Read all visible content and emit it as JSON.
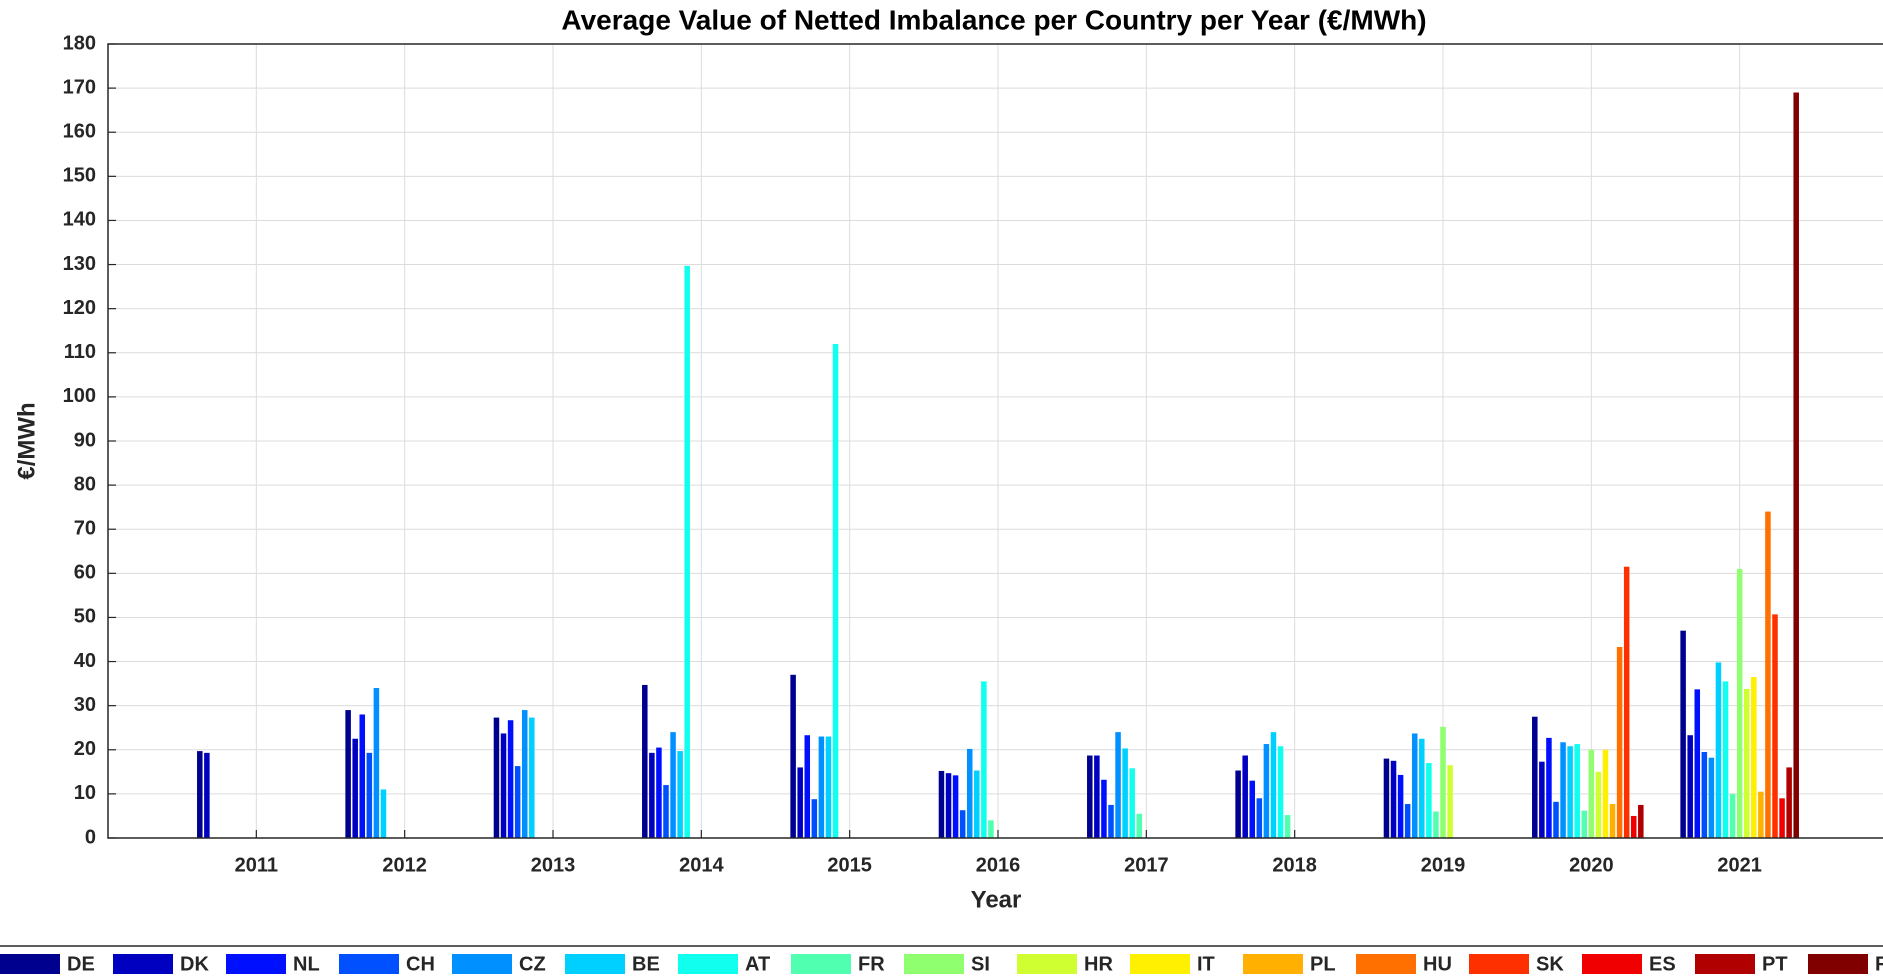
{
  "chart_data": {
    "type": "bar",
    "title": "Average Value of Netted Imbalance per Country per Year (€/MWh)",
    "x_label": "Year",
    "y_label": "€/MWh",
    "x": [
      2011,
      2012,
      2013,
      2014,
      2015,
      2016,
      2017,
      2018,
      2019,
      2020,
      2021
    ],
    "xlim": [
      2010,
      2022
    ],
    "xticks": [
      2011,
      2012,
      2013,
      2014,
      2015,
      2016,
      2017,
      2018,
      2019,
      2020,
      2021
    ],
    "ylim": [
      0,
      180
    ],
    "yticks": [
      0,
      10,
      20,
      30,
      40,
      50,
      60,
      70,
      80,
      90,
      100,
      110,
      120,
      130,
      140,
      150,
      160,
      170,
      180
    ],
    "grid": true,
    "legend": "bottom",
    "series": [
      {
        "name": "DE",
        "color": "#00008f",
        "values": [
          19.7,
          29,
          27.3,
          34.7,
          37,
          15.2,
          18.7,
          15.3,
          18,
          27.5,
          47
        ]
      },
      {
        "name": "DK",
        "color": "#0000c0",
        "values": [
          19.3,
          22.5,
          23.7,
          19.3,
          16,
          14.7,
          18.7,
          18.7,
          17.5,
          17.3,
          23.3
        ]
      },
      {
        "name": "NL",
        "color": "#0010ff",
        "values": [
          null,
          28,
          26.7,
          20.5,
          23.3,
          14.2,
          13.2,
          13,
          14.3,
          22.7,
          33.7
        ]
      },
      {
        "name": "CH",
        "color": "#0050ff",
        "values": [
          null,
          19.3,
          16.3,
          12,
          8.8,
          6.3,
          7.5,
          9,
          7.7,
          8.2,
          19.5
        ]
      },
      {
        "name": "CZ",
        "color": "#0090ff",
        "values": [
          null,
          34,
          29,
          24,
          23,
          20.2,
          24,
          21.3,
          23.7,
          21.7,
          18.2
        ]
      },
      {
        "name": "BE",
        "color": "#00d0ff",
        "values": [
          null,
          11,
          27.3,
          19.7,
          23,
          15.3,
          20.3,
          24,
          22.5,
          20.8,
          39.8
        ]
      },
      {
        "name": "AT",
        "color": "#10ffef",
        "values": [
          null,
          null,
          null,
          129.7,
          112,
          35.5,
          15.8,
          20.8,
          17,
          21.3,
          35.5
        ]
      },
      {
        "name": "FR",
        "color": "#50ffaf",
        "values": [
          null,
          null,
          null,
          null,
          null,
          4,
          5.5,
          5.2,
          6,
          6.2,
          10
        ]
      },
      {
        "name": "SI",
        "color": "#90ff6f",
        "values": [
          null,
          null,
          null,
          null,
          null,
          null,
          null,
          null,
          25.2,
          20,
          61
        ]
      },
      {
        "name": "HR",
        "color": "#cfff30",
        "values": [
          null,
          null,
          null,
          null,
          null,
          null,
          null,
          null,
          16.5,
          15,
          33.8
        ]
      },
      {
        "name": "IT",
        "color": "#ffef00",
        "values": [
          null,
          null,
          null,
          null,
          null,
          null,
          null,
          null,
          null,
          20,
          36.5
        ]
      },
      {
        "name": "PL",
        "color": "#ffb000",
        "values": [
          null,
          null,
          null,
          null,
          null,
          null,
          null,
          null,
          null,
          7.7,
          10.5
        ]
      },
      {
        "name": "HU",
        "color": "#ff7000",
        "values": [
          null,
          null,
          null,
          null,
          null,
          null,
          null,
          null,
          null,
          43.3,
          74
        ]
      },
      {
        "name": "SK",
        "color": "#ff3000",
        "values": [
          null,
          null,
          null,
          null,
          null,
          null,
          null,
          null,
          null,
          61.5,
          50.7
        ]
      },
      {
        "name": "ES",
        "color": "#f00000",
        "values": [
          null,
          null,
          null,
          null,
          null,
          null,
          null,
          null,
          null,
          5,
          9
        ]
      },
      {
        "name": "PT",
        "color": "#b00000",
        "values": [
          null,
          null,
          null,
          null,
          null,
          null,
          null,
          null,
          null,
          7.5,
          16
        ]
      },
      {
        "name": "RO",
        "color": "#800000",
        "values": [
          null,
          null,
          null,
          null,
          null,
          null,
          null,
          null,
          null,
          null,
          169
        ]
      }
    ]
  }
}
